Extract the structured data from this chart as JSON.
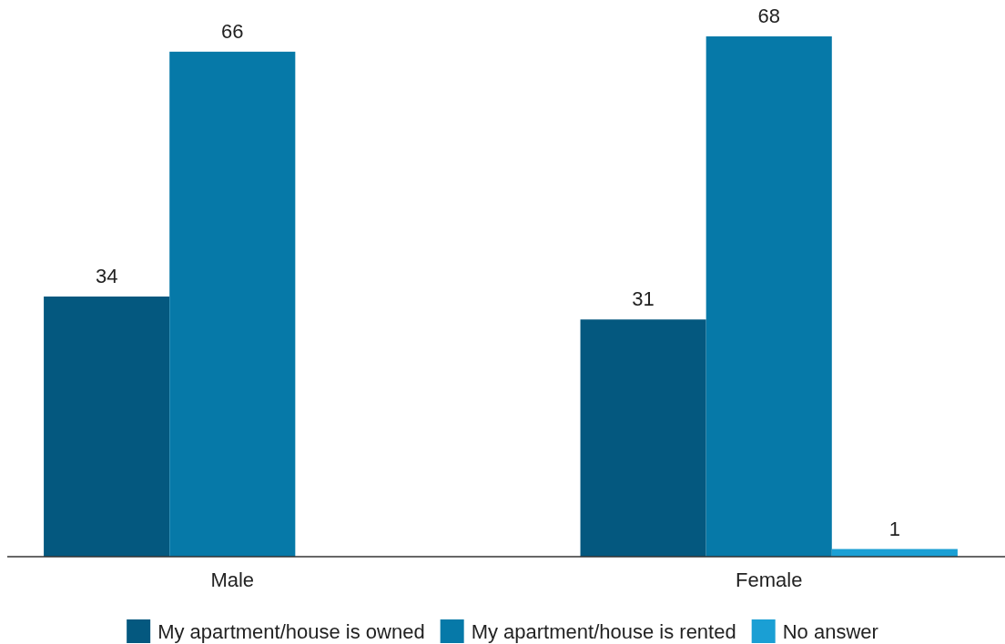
{
  "chart_data": {
    "type": "bar",
    "categories": [
      "Male",
      "Female"
    ],
    "series": [
      {
        "name": "My apartment/house is owned",
        "color": "#04587f",
        "values": [
          34,
          31
        ]
      },
      {
        "name": "My apartment/house is rented",
        "color": "#0679a8",
        "values": [
          66,
          68
        ]
      },
      {
        "name": "No answer",
        "color": "#1a9fd4",
        "values": [
          null,
          1
        ]
      }
    ],
    "data_labels": true,
    "legend": "bottom"
  }
}
